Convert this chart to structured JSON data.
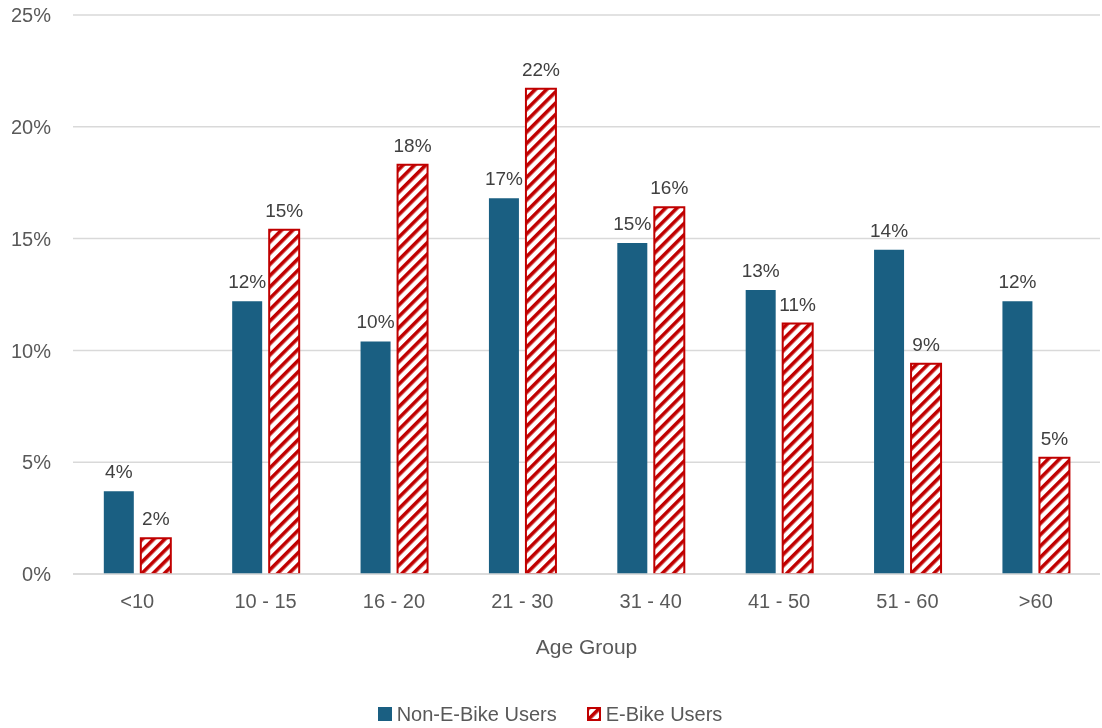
{
  "chart_data": {
    "type": "bar",
    "xlabel": "Age Group",
    "categories": [
      "<10",
      "10 - 15",
      "16 - 20",
      "21 - 30",
      "31 - 40",
      "41 - 50",
      "51 - 60",
      ">60"
    ],
    "series": [
      {
        "name": "Non-E-Bike Users",
        "color": "#1a5f82",
        "values": [
          3.7,
          12.2,
          10.4,
          16.8,
          14.8,
          12.7,
          14.5,
          12.2
        ],
        "value_labels": [
          "4%",
          "12%",
          "10%",
          "17%",
          "15%",
          "13%",
          "14%",
          "12%"
        ]
      },
      {
        "name": "E-Bike Users",
        "color": "#c00000",
        "values": [
          1.6,
          15.4,
          18.3,
          21.7,
          16.4,
          11.2,
          9.4,
          5.2
        ],
        "value_labels": [
          "2%",
          "15%",
          "18%",
          "22%",
          "16%",
          "11%",
          "9%",
          "5%"
        ]
      }
    ],
    "ylim": [
      0,
      25
    ],
    "yticks": [
      {
        "value": 0,
        "label": "0%"
      },
      {
        "value": 5,
        "label": "5%"
      },
      {
        "value": 10,
        "label": "10%"
      },
      {
        "value": 15,
        "label": "15%"
      },
      {
        "value": 20,
        "label": "20%"
      },
      {
        "value": 25,
        "label": "25%"
      }
    ],
    "grid": "y",
    "legend": "bottom"
  }
}
